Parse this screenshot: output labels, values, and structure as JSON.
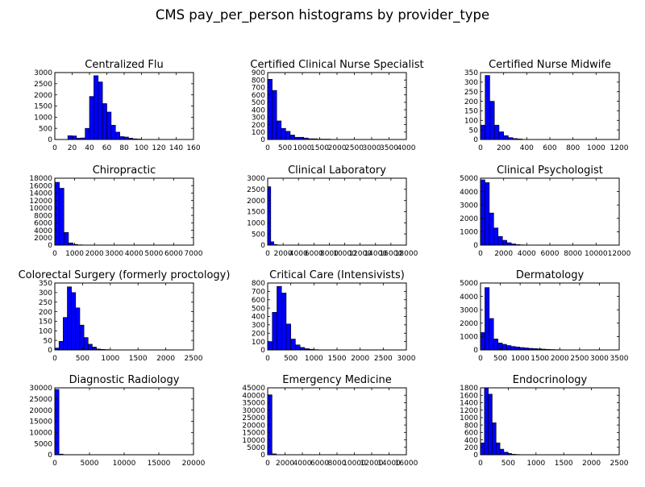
{
  "figure": {
    "suptitle": "CMS pay_per_person histograms by provider_type"
  },
  "colors": {
    "bar_fill": "#0000ff",
    "bar_edge": "#000000",
    "axes": "#000000",
    "background": "#ffffff"
  },
  "chart_data": [
    {
      "type": "bar",
      "title": "Centralized Flu",
      "xlim": [
        0,
        160
      ],
      "ylim": [
        0,
        3000
      ],
      "xticks": [
        0,
        20,
        40,
        60,
        80,
        100,
        120,
        140,
        160
      ],
      "yticks": [
        0,
        500,
        1000,
        1500,
        2000,
        2500,
        3000
      ],
      "bin_edges": [
        15,
        20,
        25,
        30,
        35,
        40,
        45,
        50,
        55,
        60,
        65,
        70,
        75,
        80,
        85,
        90,
        95,
        100
      ],
      "values": [
        170,
        160,
        60,
        70,
        500,
        1930,
        2860,
        2580,
        1610,
        1230,
        640,
        330,
        130,
        110,
        60,
        30,
        20
      ]
    },
    {
      "type": "bar",
      "title": "Certified Clinical Nurse Specialist",
      "xlim": [
        0,
        4000
      ],
      "ylim": [
        0,
        900
      ],
      "xticks": [
        0,
        500,
        1000,
        1500,
        2000,
        2500,
        3000,
        3500,
        4000
      ],
      "yticks": [
        0,
        100,
        200,
        300,
        400,
        500,
        600,
        700,
        800,
        900
      ],
      "bin_edges": [
        0,
        130,
        260,
        390,
        520,
        650,
        780,
        910,
        1040,
        1170,
        1300,
        1430,
        1560,
        1690,
        1820
      ],
      "values": [
        810,
        660,
        250,
        150,
        110,
        60,
        30,
        30,
        20,
        10,
        10,
        5,
        5,
        5
      ]
    },
    {
      "type": "bar",
      "title": "Certified Nurse Midwife",
      "xlim": [
        0,
        1200
      ],
      "ylim": [
        0,
        350
      ],
      "xticks": [
        0,
        200,
        400,
        600,
        800,
        1000,
        1200
      ],
      "yticks": [
        0,
        50,
        100,
        150,
        200,
        250,
        300,
        350
      ],
      "bin_edges": [
        0,
        40,
        80,
        120,
        160,
        200,
        240,
        280,
        320,
        360
      ],
      "values": [
        75,
        335,
        200,
        75,
        40,
        20,
        10,
        5,
        3
      ]
    },
    {
      "type": "bar",
      "title": "Chiropractic",
      "xlim": [
        0,
        7000
      ],
      "ylim": [
        0,
        18000
      ],
      "xticks": [
        0,
        1000,
        2000,
        3000,
        4000,
        5000,
        6000,
        7000
      ],
      "yticks": [
        0,
        2000,
        4000,
        6000,
        8000,
        10000,
        12000,
        14000,
        16000,
        18000
      ],
      "bin_edges": [
        0,
        230,
        460,
        690,
        920,
        1150,
        1380
      ],
      "values": [
        16900,
        15300,
        3400,
        600,
        200,
        80
      ]
    },
    {
      "type": "bar",
      "title": "Clinical Laboratory",
      "xlim": [
        0,
        18000
      ],
      "ylim": [
        0,
        3000
      ],
      "xticks": [
        0,
        2000,
        4000,
        6000,
        8000,
        10000,
        12000,
        14000,
        16000,
        18000
      ],
      "yticks": [
        0,
        500,
        1000,
        1500,
        2000,
        2500,
        3000
      ],
      "bin_edges": [
        0,
        400,
        800,
        1200,
        1600
      ],
      "values": [
        2620,
        150,
        30,
        10
      ]
    },
    {
      "type": "bar",
      "title": "Clinical Psychologist",
      "xlim": [
        0,
        12000
      ],
      "ylim": [
        0,
        5000
      ],
      "xticks": [
        0,
        2000,
        4000,
        6000,
        8000,
        10000,
        12000
      ],
      "yticks": [
        0,
        1000,
        2000,
        3000,
        4000,
        5000
      ],
      "bin_edges": [
        0,
        380,
        760,
        1140,
        1520,
        1900,
        2280,
        2660,
        3040,
        3420,
        3800
      ],
      "values": [
        4880,
        4670,
        2400,
        1280,
        650,
        360,
        180,
        90,
        40,
        20
      ]
    },
    {
      "type": "bar",
      "title": "Colorectal Surgery (formerly proctology)",
      "xlim": [
        0,
        2500
      ],
      "ylim": [
        0,
        350
      ],
      "xticks": [
        0,
        500,
        1000,
        1500,
        2000,
        2500
      ],
      "yticks": [
        0,
        50,
        100,
        150,
        200,
        250,
        300,
        350
      ],
      "bin_edges": [
        0,
        75,
        150,
        225,
        300,
        375,
        450,
        525,
        600,
        675,
        750,
        825,
        900,
        975
      ],
      "values": [
        10,
        45,
        170,
        330,
        300,
        220,
        130,
        65,
        30,
        15,
        5,
        3,
        2
      ]
    },
    {
      "type": "bar",
      "title": "Critical Care (Intensivists)",
      "xlim": [
        0,
        3000
      ],
      "ylim": [
        0,
        800
      ],
      "xticks": [
        0,
        500,
        1000,
        1500,
        2000,
        2500,
        3000
      ],
      "yticks": [
        0,
        100,
        200,
        300,
        400,
        500,
        600,
        700,
        800
      ],
      "bin_edges": [
        0,
        100,
        200,
        300,
        400,
        500,
        600,
        700,
        800,
        900,
        1000,
        1100
      ],
      "values": [
        100,
        450,
        760,
        680,
        310,
        130,
        60,
        30,
        15,
        8,
        4
      ]
    },
    {
      "type": "bar",
      "title": "Dermatology",
      "xlim": [
        0,
        3500
      ],
      "ylim": [
        0,
        5000
      ],
      "xticks": [
        0,
        500,
        1000,
        1500,
        2000,
        2500,
        3000,
        3500
      ],
      "yticks": [
        0,
        1000,
        2000,
        3000,
        4000,
        5000
      ],
      "bin_edges": [
        0,
        110,
        220,
        330,
        440,
        550,
        660,
        770,
        880,
        990,
        1100,
        1210,
        1320,
        1430,
        1540,
        1650,
        1760,
        1870,
        1980,
        2090,
        2200
      ],
      "values": [
        1300,
        4660,
        2350,
        820,
        520,
        420,
        330,
        260,
        220,
        180,
        150,
        120,
        100,
        80,
        60,
        40,
        30,
        20,
        15,
        10
      ]
    },
    {
      "type": "bar",
      "title": "Diagnostic Radiology",
      "xlim": [
        0,
        20000
      ],
      "ylim": [
        0,
        30000
      ],
      "xticks": [
        0,
        5000,
        10000,
        15000,
        20000
      ],
      "yticks": [
        0,
        5000,
        10000,
        15000,
        20000,
        25000,
        30000
      ],
      "bin_edges": [
        0,
        600,
        1200
      ],
      "values": [
        29300,
        300
      ]
    },
    {
      "type": "bar",
      "title": "Emergency Medicine",
      "xlim": [
        0,
        16000
      ],
      "ylim": [
        0,
        45000
      ],
      "xticks": [
        0,
        2000,
        4000,
        6000,
        8000,
        10000,
        12000,
        14000,
        16000
      ],
      "yticks": [
        0,
        5000,
        10000,
        15000,
        20000,
        25000,
        30000,
        35000,
        40000,
        45000
      ],
      "bin_edges": [
        0,
        500,
        1000
      ],
      "values": [
        40300,
        600
      ]
    },
    {
      "type": "bar",
      "title": "Endocrinology",
      "xlim": [
        0,
        2500
      ],
      "ylim": [
        0,
        1800
      ],
      "xticks": [
        0,
        500,
        1000,
        1500,
        2000,
        2500
      ],
      "yticks": [
        0,
        200,
        400,
        600,
        800,
        1000,
        1200,
        1400,
        1600,
        1800
      ],
      "bin_edges": [
        0,
        70,
        140,
        210,
        280,
        350,
        420,
        490,
        560,
        630,
        700,
        770
      ],
      "values": [
        320,
        1800,
        1630,
        860,
        320,
        150,
        70,
        35,
        15,
        8,
        4
      ]
    }
  ]
}
